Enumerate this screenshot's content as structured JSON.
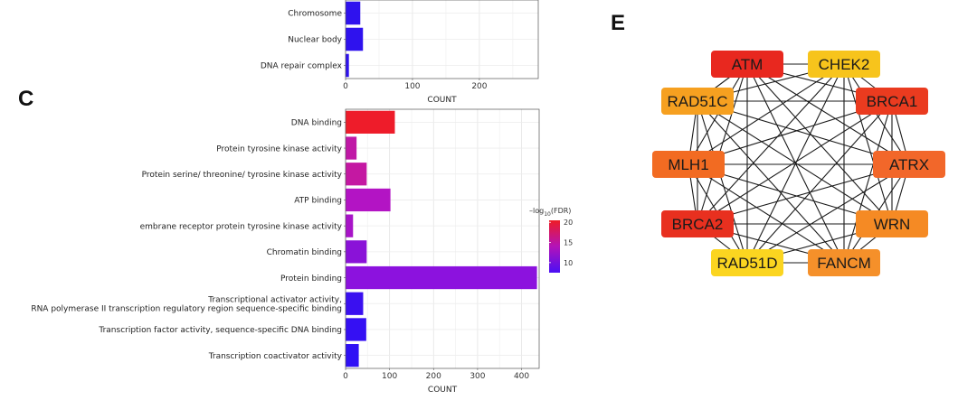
{
  "panels": {
    "c_label": "C",
    "e_label": "E"
  },
  "legend": {
    "title_prefix": "–log",
    "title_sub": "10",
    "title_suffix": "(FDR)",
    "ticks": [
      20,
      15,
      10
    ],
    "range": [
      7.5,
      20.5
    ],
    "color_high": "#ee1c25",
    "color_mid": "#b313b8",
    "color_low": "#4a10f5"
  },
  "chart_data": [
    {
      "type": "bar",
      "orientation": "horizontal",
      "categories": [
        "Chromosome",
        "Nuclear body",
        "DNA repair complex"
      ],
      "values": [
        22,
        26,
        5
      ],
      "colors": [
        "#2f12ee",
        "#2f12ee",
        "#2f12ee"
      ],
      "xlabel": "COUNT",
      "ylabel": "",
      "xlim": [
        0,
        288
      ],
      "xticks": [
        0,
        100,
        200
      ],
      "grid": true
    },
    {
      "type": "bar",
      "orientation": "horizontal",
      "categories": [
        [
          "DNA binding"
        ],
        [
          "Protein tyrosine kinase activity"
        ],
        [
          "Protein serine/ threonine/ tyrosine kinase activity"
        ],
        [
          "ATP binding"
        ],
        [
          "embrane receptor protein tyrosine kinase activity"
        ],
        [
          "Chromatin binding"
        ],
        [
          "Protein binding"
        ],
        [
          "Transcriptional activator activity,",
          "RNA polymerase II transcription regulatory region sequence-specific binding"
        ],
        [
          "Transcription factor activity, sequence-specific DNA binding"
        ],
        [
          "Transcription coactivator activity"
        ]
      ],
      "values": [
        112,
        25,
        48,
        102,
        17,
        48,
        435,
        40,
        47,
        30
      ],
      "colors": [
        "#ee1c2a",
        "#c018a6",
        "#c418a2",
        "#b314c4",
        "#a814c8",
        "#8a12d8",
        "#8c12de",
        "#3a10f0",
        "#3510f3",
        "#2f10f5"
      ],
      "xlabel": "COUNT",
      "ylabel": "",
      "xlim": [
        0,
        440
      ],
      "xticks": [
        0,
        100,
        200,
        300,
        400
      ],
      "grid": true,
      "legend": "right"
    }
  ],
  "network": {
    "nodes": [
      {
        "label": "ATM",
        "color": "#e8281f"
      },
      {
        "label": "CHEK2",
        "color": "#f7c41c"
      },
      {
        "label": "RAD51C",
        "color": "#f6a020"
      },
      {
        "label": "BRCA1",
        "color": "#ea3b1f"
      },
      {
        "label": "MLH1",
        "color": "#f26b22"
      },
      {
        "label": "ATRX",
        "color": "#f2672a"
      },
      {
        "label": "BRCA2",
        "color": "#e8301f"
      },
      {
        "label": "WRN",
        "color": "#f58a24"
      },
      {
        "label": "RAD51D",
        "color": "#fbd520"
      },
      {
        "label": "FANCM",
        "color": "#f5902a"
      }
    ]
  }
}
